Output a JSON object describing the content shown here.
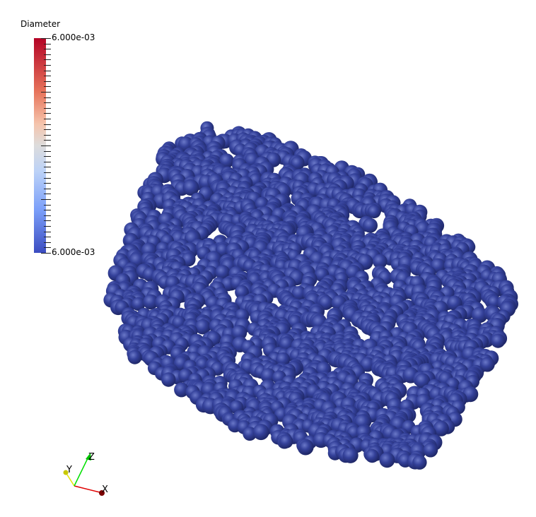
{
  "colorbar": {
    "title": "Diameter",
    "max_label": "6.000e-03",
    "min_label": "6.000e-03",
    "colormap": "cool-to-warm",
    "colors": {
      "high": "#b40426",
      "mid": "#dddcdc",
      "low": "#3b4cc0"
    }
  },
  "particles": {
    "color": "#2f3b8f"
  },
  "axes": {
    "x_label": "X",
    "y_label": "Y",
    "z_label": "Z",
    "colors": {
      "x": "#e00000",
      "y": "#e6e600",
      "z": "#00e000"
    }
  }
}
